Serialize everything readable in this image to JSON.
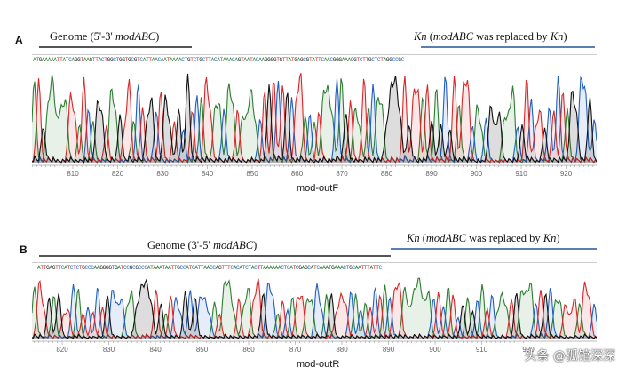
{
  "panels": [
    {
      "id": "A",
      "label": "A",
      "left_header": {
        "pre": "Genome (5'-3' ",
        "italic": "modABC",
        "post": ")"
      },
      "right_header": {
        "i1": "Kn",
        "t1": " (",
        "i2": "modABC",
        "t2": " was replaced by ",
        "i3": "Kn",
        "t3": ")"
      },
      "sequence": "ATGAAAAATTATCAGGTAAGTTACTGGCTGGTGCGTCATTAACAATAAAACTGTCTGCTTACATAAACAGTAATACAAGGGGTGTTATGAGCGTATTCAACGGGAAACGTCTTGCTCTAGGCCGC",
      "ticks": [
        "810",
        "820",
        "830",
        "840",
        "850",
        "860",
        "870",
        "880",
        "890",
        "900",
        "910",
        "920",
        "9"
      ],
      "caption": "mod-outF"
    },
    {
      "id": "B",
      "label": "B",
      "left_header": {
        "pre": "Genome (3'-5' ",
        "italic": "modABC",
        "post": ")"
      },
      "right_header": {
        "i1": "Kn",
        "t1": " (",
        "i2": "modABC",
        "t2": " was replaced by ",
        "i3": "Kn",
        "t3": ")"
      },
      "sequence": "ATTGAGTTCATCTCTGCCCAAGGGGTGATCCGCGCCCATAAATAATTGCCATCATTAACCAGTTTCACATCTACTTAAAAAACTCATCGAGCATCAAATGAAACTGCAATTTATTC",
      "ticks": [
        "820",
        "830",
        "840",
        "850",
        "860",
        "870",
        "880",
        "890",
        "900",
        "910",
        "920"
      ],
      "caption": "mod-outR"
    }
  ],
  "colors": {
    "A": "#2e7d32",
    "C": "#1f5fbf",
    "G": "#111111",
    "T": "#d62828",
    "header_line": "#555555",
    "kn_line": "#5b7fb0"
  },
  "watermark": "头条 @孤馆深深"
}
